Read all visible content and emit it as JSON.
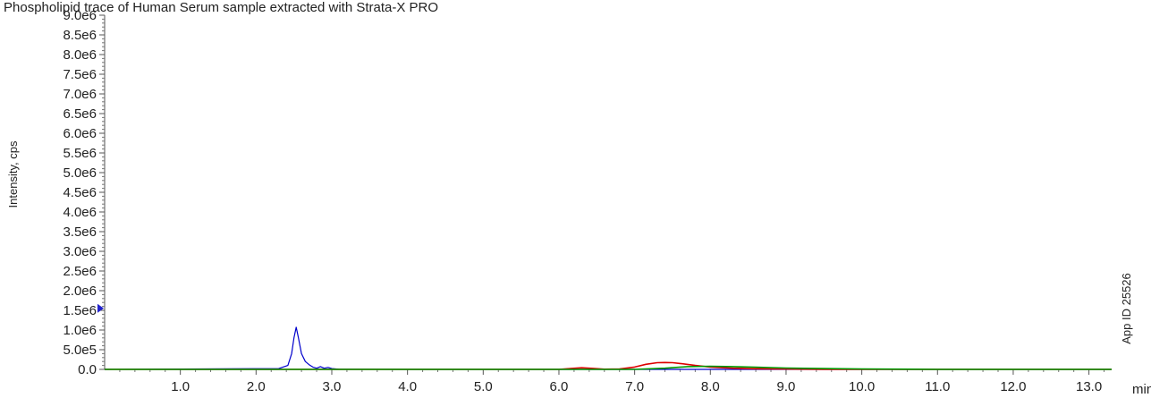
{
  "chart_data": {
    "type": "line",
    "title": "Phospholipid trace of Human Serum sample extracted with Strata-X PRO",
    "xlabel": "min",
    "ylabel": "Intensity, cps",
    "annotation": "App ID 25526",
    "xlim": [
      0,
      13.3
    ],
    "ylim": [
      0,
      9000000
    ],
    "x_ticks": [
      1.0,
      2.0,
      3.0,
      4.0,
      5.0,
      6.0,
      7.0,
      8.0,
      9.0,
      10.0,
      11.0,
      12.0,
      13.0
    ],
    "x_tick_labels": [
      "1.0",
      "2.0",
      "3.0",
      "4.0",
      "5.0",
      "6.0",
      "7.0",
      "8.0",
      "9.0",
      "10.0",
      "11.0",
      "12.0",
      "13.0"
    ],
    "y_ticks": [
      0,
      500000,
      1000000,
      1500000,
      2000000,
      2500000,
      3000000,
      3500000,
      4000000,
      4500000,
      5000000,
      5500000,
      6000000,
      6500000,
      7000000,
      7500000,
      8000000,
      8500000,
      9000000
    ],
    "y_tick_labels": [
      "0.0",
      "5.0e5",
      "1.0e6",
      "1.5e6",
      "2.0e6",
      "2.5e6",
      "3.0e6",
      "3.5e6",
      "4.0e6",
      "4.5e6",
      "5.0e6",
      "5.5e6",
      "6.0e6",
      "6.5e6",
      "7.0e6",
      "7.5e6",
      "8.0e6",
      "8.5e6",
      "9.0e6"
    ],
    "marker_y": 1550000,
    "grid": false,
    "series": [
      {
        "color": "#0000cc",
        "x": [
          0.0,
          2.3,
          2.42,
          2.47,
          2.5,
          2.53,
          2.56,
          2.6,
          2.65,
          2.7,
          2.75,
          2.8,
          2.85,
          2.9,
          2.95,
          3.0,
          3.1,
          4.0,
          6.0,
          7.0,
          8.0,
          9.0,
          10.0,
          13.3
        ],
        "y": [
          0,
          20000,
          100000,
          400000,
          800000,
          1070000,
          800000,
          400000,
          200000,
          120000,
          60000,
          30000,
          70000,
          30000,
          50000,
          20000,
          5000,
          0,
          0,
          0,
          0,
          0,
          0,
          0
        ]
      },
      {
        "color": "#dd0000",
        "x": [
          0.0,
          6.0,
          6.15,
          6.3,
          6.45,
          6.6,
          6.8,
          7.0,
          7.15,
          7.3,
          7.4,
          7.5,
          7.6,
          7.8,
          8.0,
          8.3,
          8.6,
          9.0,
          9.5,
          10.0,
          13.3
        ],
        "y": [
          0,
          0,
          20000,
          40000,
          25000,
          5000,
          10000,
          60000,
          130000,
          170000,
          175000,
          170000,
          150000,
          100000,
          60000,
          30000,
          15000,
          8000,
          3000,
          0,
          0
        ]
      },
      {
        "color": "#009900",
        "x": [
          0.0,
          2.3,
          3.0,
          7.0,
          7.4,
          7.7,
          8.0,
          8.3,
          8.6,
          9.0,
          9.5,
          10.0,
          11.0,
          13.3
        ],
        "y": [
          0,
          0,
          0,
          0,
          30000,
          70000,
          80000,
          70000,
          55000,
          35000,
          20000,
          10000,
          0,
          0
        ]
      }
    ]
  }
}
